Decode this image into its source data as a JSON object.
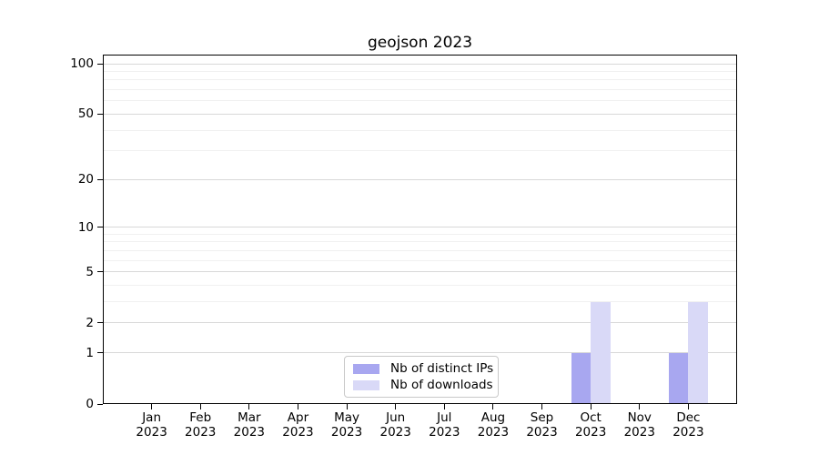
{
  "title": "geojson 2023",
  "chart_data": {
    "type": "bar",
    "title": "geojson 2023",
    "categories": [
      "Jan 2023",
      "Feb 2023",
      "Mar 2023",
      "Apr 2023",
      "May 2023",
      "Jun 2023",
      "Jul 2023",
      "Aug 2023",
      "Sep 2023",
      "Oct 2023",
      "Nov 2023",
      "Dec 2023"
    ],
    "series": [
      {
        "name": "Nb of distinct IPs",
        "color": "#a8a7f0",
        "values": [
          0,
          0,
          0,
          0,
          0,
          0,
          0,
          0,
          0,
          1,
          0,
          1
        ]
      },
      {
        "name": "Nb of downloads",
        "color": "#d9d9f7",
        "values": [
          0,
          0,
          0,
          0,
          0,
          0,
          0,
          0,
          0,
          3,
          0,
          3
        ]
      }
    ],
    "y_scale": "log1p",
    "ylim": [
      0,
      100
    ],
    "y_major_ticks": [
      0,
      1,
      2,
      5,
      10,
      20,
      50,
      100
    ],
    "y_minor_gridlines": [
      3,
      4,
      6,
      7,
      8,
      9,
      30,
      40,
      60,
      70,
      80,
      90
    ],
    "grid": true,
    "legend_position": "lower center inside plot",
    "xlabel": "",
    "ylabel": ""
  },
  "colors": {
    "background": "#ffffff",
    "grid_major": "#d8d8d8",
    "grid_minor": "#f0f0f0",
    "spine": "#000000",
    "bar_distinct_ips": "#a8a7f0",
    "bar_downloads": "#d9d9f7",
    "legend_border": "#c9c9c9"
  }
}
